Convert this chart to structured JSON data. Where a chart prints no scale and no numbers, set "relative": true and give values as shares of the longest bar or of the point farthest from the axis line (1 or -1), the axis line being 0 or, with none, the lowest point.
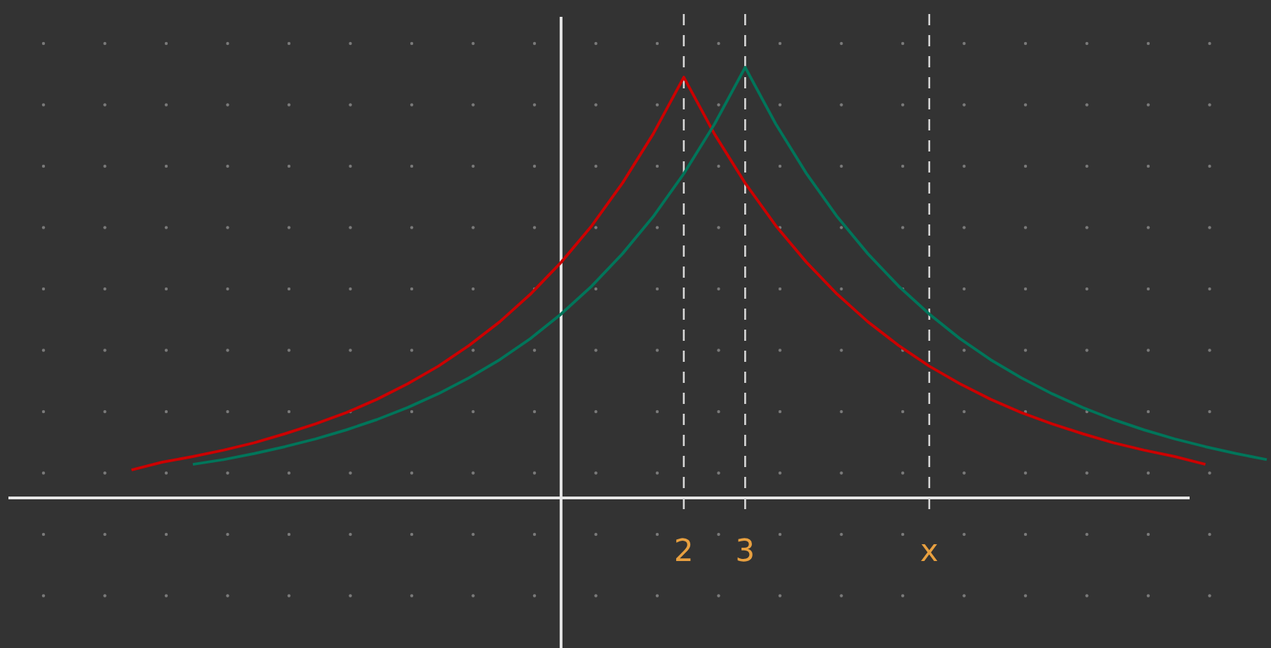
{
  "chart_data": {
    "type": "line",
    "relative": true,
    "tick_labels": "x",
    "categories": [
      null,
      null,
      null,
      null,
      null,
      null,
      null,
      null,
      null,
      null,
      null,
      null,
      null,
      null,
      null,
      null,
      null,
      null,
      null,
      null,
      null,
      null,
      "2",
      null,
      "3",
      null,
      null,
      null,
      null,
      null,
      "x",
      null,
      null,
      null,
      null,
      null,
      null,
      null,
      null,
      null,
      null,
      null
    ],
    "series": [
      {
        "color": "#cc0000",
        "values": [
          null,
          null,
          null,
          null,
          0.065,
          0.083,
          0.096,
          0.111,
          0.128,
          0.149,
          0.172,
          0.198,
          0.229,
          0.265,
          0.306,
          0.354,
          0.409,
          0.473,
          0.547,
          0.632,
          0.731,
          0.845,
          0.977,
          0.845,
          0.731,
          0.632,
          0.547,
          0.473,
          0.409,
          0.354,
          0.306,
          0.265,
          0.229,
          0.198,
          0.172,
          0.149,
          0.128,
          0.111,
          0.096,
          0.078,
          null,
          null
        ]
      },
      {
        "color": "#00755a",
        "values": [
          null,
          null,
          null,
          null,
          null,
          null,
          0.078,
          0.089,
          0.103,
          0.119,
          0.137,
          0.158,
          0.182,
          0.21,
          0.242,
          0.279,
          0.321,
          0.37,
          0.427,
          0.492,
          0.567,
          0.653,
          0.753,
          0.868,
          1,
          0.868,
          0.753,
          0.653,
          0.567,
          0.492,
          0.427,
          0.37,
          0.321,
          0.279,
          0.242,
          0.21,
          0.182,
          0.158,
          0.137,
          0.119,
          0.103,
          0.089
        ]
      }
    ],
    "ref_lines": [
      {
        "axis": "x",
        "value": "2",
        "color": "#d8d8d8",
        "line_style": "dashed"
      },
      {
        "axis": "x",
        "value": "3",
        "color": "#d8d8d8",
        "line_style": "dashed"
      },
      {
        "axis": "x",
        "value": "x",
        "color": "#d8d8d8",
        "line_style": "dashed"
      }
    ]
  }
}
